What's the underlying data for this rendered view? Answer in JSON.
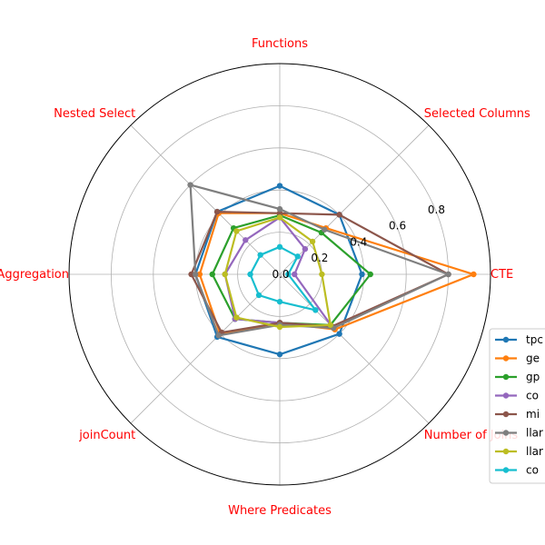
{
  "chart_data": {
    "type": "radar",
    "axes": [
      "CTE",
      "Selected Columns",
      "Functions",
      "Nested Select",
      "Aggregation",
      "joinCount",
      "Where Predicates",
      "Number of Joins"
    ],
    "radial_ticks": [
      "0.0",
      "0.2",
      "0.4",
      "0.6",
      "0.8"
    ],
    "rmax": 1.0,
    "axis_label_color": "#ff0000",
    "legend_position": "right",
    "series": [
      {
        "name": "tpc",
        "color": "#1f77b4",
        "values": [
          0.39,
          0.4,
          0.42,
          0.42,
          0.4,
          0.42,
          0.38,
          0.4
        ]
      },
      {
        "name": "ge",
        "color": "#ff7f0e",
        "values": [
          0.92,
          0.31,
          0.29,
          0.41,
          0.38,
          0.4,
          0.23,
          0.37
        ]
      },
      {
        "name": "gp",
        "color": "#2ca02c",
        "values": [
          0.43,
          0.28,
          0.28,
          0.31,
          0.32,
          0.3,
          0.23,
          0.34
        ]
      },
      {
        "name": "co",
        "color": "#9467bd",
        "values": [
          0.07,
          0.17,
          0.27,
          0.23,
          0.26,
          0.3,
          0.23,
          0.35
        ]
      },
      {
        "name": "mi",
        "color": "#8c564b",
        "values": [
          0.8,
          0.4,
          0.29,
          0.42,
          0.42,
          0.39,
          0.23,
          0.35
        ]
      },
      {
        "name": "llar",
        "color": "#7f7f7f",
        "values": [
          0.8,
          0.3,
          0.31,
          0.6,
          0.4,
          0.41,
          0.24,
          0.36
        ]
      },
      {
        "name": "llar",
        "color": "#bcbd22",
        "values": [
          0.2,
          0.22,
          0.27,
          0.29,
          0.26,
          0.29,
          0.25,
          0.34
        ]
      },
      {
        "name": "co",
        "color": "#17becf",
        "values": [
          0.04,
          0.12,
          0.13,
          0.13,
          0.14,
          0.14,
          0.13,
          0.24
        ]
      }
    ]
  }
}
